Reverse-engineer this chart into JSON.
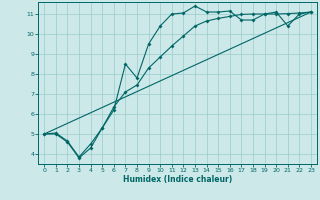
{
  "title": "",
  "xlabel": "Humidex (Indice chaleur)",
  "ylabel": "",
  "bg_color": "#cce8e8",
  "grid_color": "#99cccc",
  "line_color": "#006666",
  "xlim": [
    -0.5,
    23.5
  ],
  "ylim": [
    3.5,
    11.6
  ],
  "xticks": [
    0,
    1,
    2,
    3,
    4,
    5,
    6,
    7,
    8,
    9,
    10,
    11,
    12,
    13,
    14,
    15,
    16,
    17,
    18,
    19,
    20,
    21,
    22,
    23
  ],
  "yticks": [
    4,
    5,
    6,
    7,
    8,
    9,
    10,
    11
  ],
  "line1_x": [
    0,
    1,
    2,
    3,
    4,
    5,
    6,
    7,
    8,
    9,
    10,
    11,
    12,
    13,
    14,
    15,
    16,
    17,
    18,
    19,
    20,
    21,
    22,
    23
  ],
  "line1_y": [
    5.0,
    5.0,
    4.6,
    3.8,
    4.3,
    5.3,
    6.2,
    8.5,
    7.8,
    9.5,
    10.4,
    11.0,
    11.05,
    11.4,
    11.1,
    11.1,
    11.15,
    10.7,
    10.7,
    11.0,
    11.1,
    10.4,
    11.0,
    11.1
  ],
  "line2_x": [
    0,
    1,
    2,
    3,
    4,
    5,
    6,
    7,
    8,
    9,
    10,
    11,
    12,
    13,
    14,
    15,
    16,
    17,
    18,
    19,
    20,
    21,
    22,
    23
  ],
  "line2_y": [
    5.0,
    5.05,
    4.65,
    3.85,
    4.5,
    5.3,
    6.35,
    7.1,
    7.45,
    8.3,
    8.85,
    9.4,
    9.9,
    10.4,
    10.65,
    10.78,
    10.88,
    10.98,
    11.0,
    11.0,
    11.0,
    11.02,
    11.05,
    11.1
  ],
  "line3_x": [
    0,
    23
  ],
  "line3_y": [
    5.0,
    11.1
  ]
}
